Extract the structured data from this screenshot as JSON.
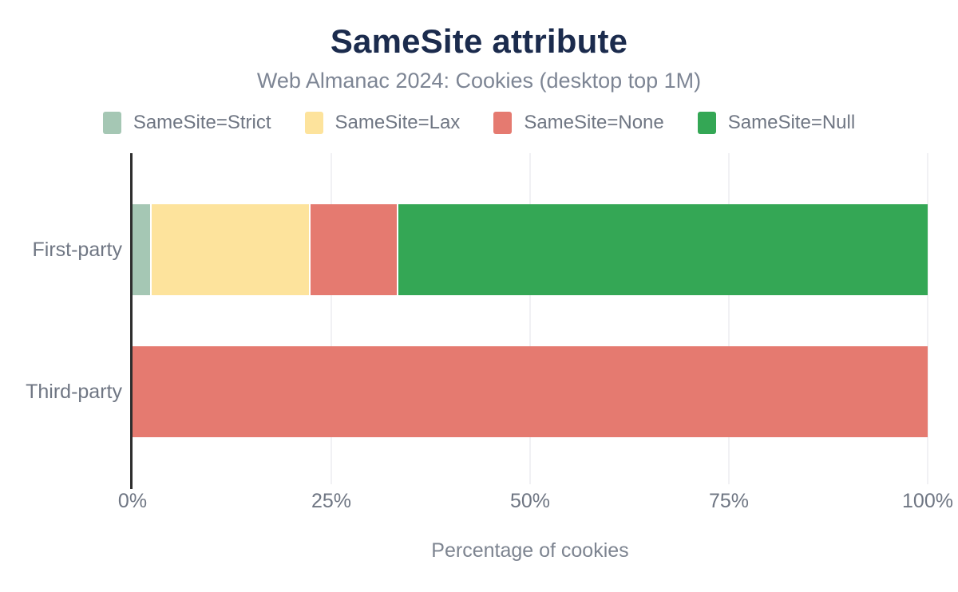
{
  "header": {
    "title": "SameSite attribute",
    "subtitle": "Web Almanac 2024: Cookies (desktop top 1M)"
  },
  "chart_data": {
    "type": "bar",
    "orientation": "horizontal",
    "stacked": true,
    "title": "SameSite attribute",
    "subtitle": "Web Almanac 2024: Cookies (desktop top 1M)",
    "xlabel": "Percentage of cookies",
    "ylabel": "",
    "xlim": [
      0,
      100
    ],
    "grid": "vertical",
    "legend_position": "top",
    "categories": [
      "First-party",
      "Third-party"
    ],
    "series": [
      {
        "name": "SameSite=Strict",
        "color": "#a5c7b4",
        "values": [
          2.2,
          0
        ]
      },
      {
        "name": "SameSite=Lax",
        "color": "#fde39c",
        "values": [
          20.0,
          0
        ]
      },
      {
        "name": "SameSite=None",
        "color": "#e57a70",
        "values": [
          11.0,
          100
        ]
      },
      {
        "name": "SameSite=Null",
        "color": "#34a755",
        "values": [
          66.8,
          0
        ]
      }
    ],
    "xticks": [
      {
        "label": "0%",
        "value": 0
      },
      {
        "label": "25%",
        "value": 25
      },
      {
        "label": "50%",
        "value": 50
      },
      {
        "label": "75%",
        "value": 75
      },
      {
        "label": "100%",
        "value": 100
      }
    ],
    "colors": {
      "title": "#1b2b4d",
      "subtitle": "#7d8594",
      "axis_text": "#6f7683",
      "axis_line": "#2e2e2e",
      "gridline": "#f1f1f4",
      "background": "#ffffff"
    }
  }
}
